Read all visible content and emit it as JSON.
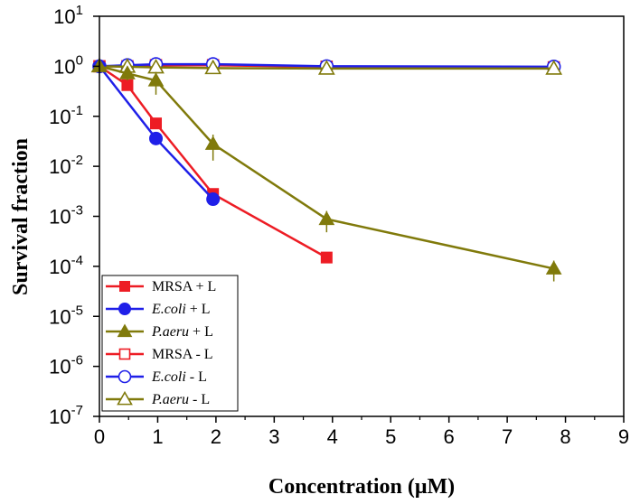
{
  "chart_data": {
    "type": "line",
    "title": "",
    "xlabel": "Concentration (μM)",
    "ylabel": "Survival fraction",
    "xlim": [
      0,
      9
    ],
    "ylim_log10": [
      -7,
      1
    ],
    "y_scale": "log",
    "x_ticks": [
      "0",
      "1",
      "2",
      "3",
      "4",
      "5",
      "6",
      "7",
      "8",
      "9"
    ],
    "y_ticks": [
      {
        "base": "10",
        "exp": "1"
      },
      {
        "base": "10",
        "exp": "0"
      },
      {
        "base": "10",
        "exp": "-1"
      },
      {
        "base": "10",
        "exp": "-2"
      },
      {
        "base": "10",
        "exp": "-3"
      },
      {
        "base": "10",
        "exp": "-4"
      },
      {
        "base": "10",
        "exp": "-5"
      },
      {
        "base": "10",
        "exp": "-6"
      },
      {
        "base": "10",
        "exp": "-7"
      }
    ],
    "legend_position": "bottom-left",
    "series": [
      {
        "name": "MRSA + L",
        "italic": "",
        "rest": "MRSA + L",
        "color": "#ed1c24",
        "marker": "square",
        "filled": true,
        "x": [
          0,
          0.48,
          0.97,
          1.95,
          3.9
        ],
        "y": [
          1.0,
          0.42,
          0.072,
          0.0028,
          0.00015
        ]
      },
      {
        "name": "E.coli + L",
        "italic": "E.coli",
        "rest": " + L",
        "color": "#1f1fe8",
        "marker": "circle",
        "filled": true,
        "x": [
          0,
          0.97,
          1.95
        ],
        "y": [
          1.0,
          0.036,
          0.0022
        ]
      },
      {
        "name": "P.aeru + L",
        "italic": "P.aeru",
        "rest": " + L",
        "color": "#807a0b",
        "marker": "triangle",
        "filled": true,
        "x": [
          0,
          0.48,
          0.97,
          1.95,
          3.9,
          7.8
        ],
        "y": [
          1.0,
          0.72,
          0.52,
          0.028,
          0.00088,
          9e-05
        ],
        "err": [
          0,
          0.2,
          0.25,
          0.015,
          0.0004,
          4e-05
        ]
      },
      {
        "name": "MRSA - L",
        "italic": "",
        "rest": "MRSA - L",
        "color": "#ed1c24",
        "marker": "square",
        "filled": false,
        "x": [
          0,
          0.48,
          0.97,
          1.95,
          3.9,
          7.8
        ],
        "y": [
          1.0,
          1.0,
          1.05,
          1.05,
          0.98,
          0.95
        ]
      },
      {
        "name": "E.coli - L",
        "italic": "E.coli",
        "rest": " - L",
        "color": "#1f1fe8",
        "marker": "circle",
        "filled": false,
        "x": [
          0,
          0.48,
          0.97,
          1.95,
          3.9,
          7.8
        ],
        "y": [
          1.0,
          1.05,
          1.1,
          1.1,
          1.0,
          0.98
        ]
      },
      {
        "name": "P.aeru - L",
        "italic": "P.aeru",
        "rest": " - L",
        "color": "#807a0b",
        "marker": "triangle",
        "filled": false,
        "x": [
          0,
          0.48,
          0.97,
          1.95,
          3.9,
          7.8
        ],
        "y": [
          1.0,
          0.98,
          0.95,
          0.92,
          0.9,
          0.9
        ]
      }
    ]
  }
}
